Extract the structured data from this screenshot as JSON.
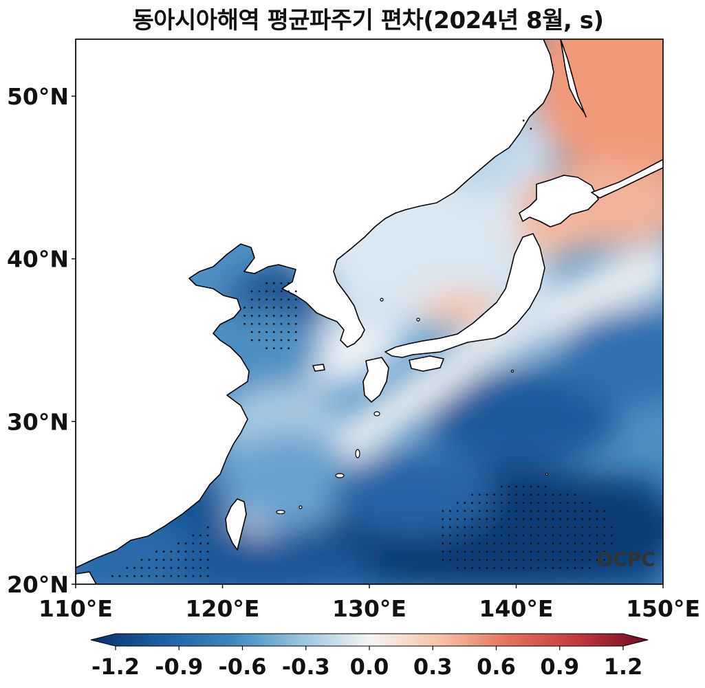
{
  "title": "동아시아해역 평균파주기 편차(2024년 8월, s)",
  "watermark": "OCPC",
  "map": {
    "lon_range": [
      110,
      150
    ],
    "lat_range": [
      20,
      53.5
    ],
    "lat_ticks": [
      {
        "value": 50,
        "label": "50°N"
      },
      {
        "value": 40,
        "label": "40°N"
      },
      {
        "value": 30,
        "label": "30°N"
      },
      {
        "value": 20,
        "label": "20°N"
      }
    ],
    "lon_ticks": [
      {
        "value": 110,
        "label": "110°E"
      },
      {
        "value": 120,
        "label": "120°E"
      },
      {
        "value": 130,
        "label": "130°E"
      },
      {
        "value": 140,
        "label": "140°E"
      },
      {
        "value": 150,
        "label": "150°E"
      }
    ]
  },
  "colorbar": {
    "colormap": "RdBu_r",
    "range": [
      -1.2,
      1.2
    ],
    "extend": "both",
    "ticks": [
      {
        "value": -1.2,
        "label": "-1.2"
      },
      {
        "value": -0.9,
        "label": "-0.9"
      },
      {
        "value": -0.6,
        "label": "-0.6"
      },
      {
        "value": -0.3,
        "label": "-0.3"
      },
      {
        "value": 0.0,
        "label": "0.0"
      },
      {
        "value": 0.3,
        "label": "0.3"
      },
      {
        "value": 0.6,
        "label": "0.6"
      },
      {
        "value": 0.9,
        "label": "0.9"
      },
      {
        "value": 1.2,
        "label": "1.2"
      }
    ],
    "stops": [
      {
        "v": -1.2,
        "color": "#08306b"
      },
      {
        "v": -0.9,
        "color": "#1f5ea0"
      },
      {
        "v": -0.6,
        "color": "#3b86bd"
      },
      {
        "v": -0.3,
        "color": "#96c4de"
      },
      {
        "v": 0.0,
        "color": "#f5f5f4"
      },
      {
        "v": 0.3,
        "color": "#f7c2a7"
      },
      {
        "v": 0.6,
        "color": "#e2725c"
      },
      {
        "v": 0.9,
        "color": "#c13a3c"
      },
      {
        "v": 1.2,
        "color": "#6e0a23"
      }
    ]
  },
  "colors": {
    "land": "#ffffff",
    "coastline": "#000000",
    "frame": "#000000"
  }
}
